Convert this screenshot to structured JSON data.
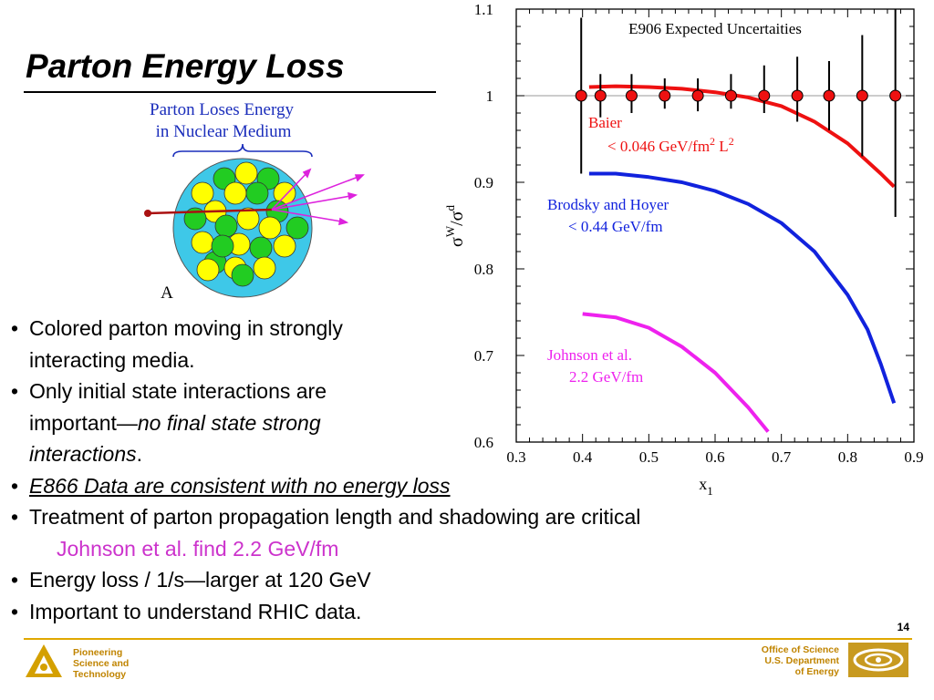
{
  "slide": {
    "title": "Parton Energy Loss",
    "page_number": "14"
  },
  "figure": {
    "caption_line1": "Parton Loses Energy",
    "caption_line2": "in Nuclear Medium",
    "nucleus_label": "A"
  },
  "bullets": {
    "b1_line1": "Colored parton moving in strongly",
    "b1_line2": "interacting media.",
    "b2_line1": "Only initial state interactions are",
    "b2_line2_a": "important—",
    "b2_line2_b": "no final state strong",
    "b2_line3_a": "interactions",
    "b2_line3_b": ".",
    "b3": "E866 Data are consistent with no energy loss",
    "b4": "Treatment of parton propagation length and shadowing are critical",
    "b4_sub": "Johnson et al. find 2.2 GeV/fm",
    "b5": "Energy loss / 1/s—larger at 120 GeV",
    "b6": "Important to understand RHIC data.",
    "bullet_char": "•"
  },
  "footer": {
    "left_line1": "Pioneering",
    "left_line2": "Science and",
    "left_line3": "Technology",
    "right_line1": "Office of Science",
    "right_line2": "U.S. Department",
    "right_line3": "of Energy"
  },
  "colors": {
    "red": "#ee1111",
    "blue": "#1122dd",
    "magenta": "#ee22ee",
    "accent": "#e0a800"
  },
  "chart_data": {
    "type": "line",
    "title": "E906 Expected Uncertaities",
    "xlabel": "x1",
    "ylabel": "σW/σd",
    "xlim": [
      0.3,
      0.9
    ],
    "ylim": [
      0.6,
      1.1
    ],
    "x_ticks": [
      "0.3",
      "0.4",
      "0.5",
      "0.6",
      "0.7",
      "0.8",
      "0.9"
    ],
    "y_ticks": [
      "0.6",
      "0.7",
      "0.8",
      "0.9",
      "1",
      "1.1"
    ],
    "reference_line": 1.0,
    "points": {
      "x": [
        0.398,
        0.427,
        0.474,
        0.524,
        0.574,
        0.624,
        0.674,
        0.724,
        0.772,
        0.822,
        0.872
      ],
      "y": [
        1,
        1,
        1,
        1,
        1,
        1,
        1,
        1,
        1,
        1,
        1
      ],
      "err_low": [
        0.09,
        0.025,
        0.02,
        0.015,
        0.018,
        0.015,
        0.02,
        0.03,
        0.04,
        0.07,
        0.14
      ],
      "err_high": [
        0.09,
        0.025,
        0.025,
        0.02,
        0.02,
        0.025,
        0.035,
        0.045,
        0.04,
        0.07,
        0.1
      ]
    },
    "series": [
      {
        "label_line1": "Baier",
        "label_line2": "< 0.046 GeV/fm",
        "label_sup1": "2",
        "label_mid": " L",
        "label_sup2": "2",
        "x": [
          0.41,
          0.45,
          0.5,
          0.55,
          0.6,
          0.65,
          0.7,
          0.75,
          0.8,
          0.85,
          0.87
        ],
        "y": [
          1.01,
          1.011,
          1.01,
          1.008,
          1.004,
          0.998,
          0.988,
          0.97,
          0.945,
          0.91,
          0.895
        ]
      },
      {
        "label_line1": "Brodsky and Hoyer",
        "label_line2": "< 0.44 GeV/fm",
        "x": [
          0.41,
          0.45,
          0.5,
          0.55,
          0.6,
          0.65,
          0.7,
          0.75,
          0.8,
          0.83,
          0.85,
          0.87
        ],
        "y": [
          0.91,
          0.91,
          0.906,
          0.9,
          0.89,
          0.875,
          0.853,
          0.82,
          0.77,
          0.73,
          0.69,
          0.645
        ]
      },
      {
        "label_line1": "Johnson et al.",
        "label_line2": "2.2 GeV/fm",
        "x": [
          0.4,
          0.45,
          0.5,
          0.55,
          0.6,
          0.65,
          0.68
        ],
        "y": [
          0.748,
          0.744,
          0.732,
          0.71,
          0.68,
          0.64,
          0.612
        ]
      }
    ]
  }
}
